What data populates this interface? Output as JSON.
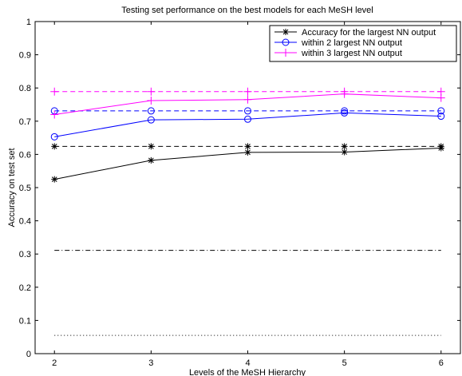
{
  "chart_data": {
    "type": "line",
    "title": "Testing set performance on the best models for each  MeSH level",
    "xlabel": "Levels of the MeSH Hierarchy",
    "ylabel": "Accuracy on test set",
    "x": [
      2,
      3,
      4,
      5,
      6
    ],
    "xlim": [
      1.8,
      6.2
    ],
    "ylim": [
      0,
      1
    ],
    "xticks": [
      "2",
      "3",
      "4",
      "5",
      "6"
    ],
    "yticks": [
      "0",
      "0.1",
      "0.2",
      "0.3",
      "0.4",
      "0.5",
      "0.6",
      "0.7",
      "0.8",
      "0.9",
      "1"
    ],
    "grid": false,
    "legend_position": "top-right",
    "series": [
      {
        "name": "Accuracy for the largest NN output",
        "color": "#000000",
        "marker": "star",
        "values": [
          0.525,
          0.582,
          0.606,
          0.607,
          0.619
        ]
      },
      {
        "name": "within 2 largest NN output",
        "color": "#0000ff",
        "marker": "circle",
        "values": [
          0.653,
          0.704,
          0.706,
          0.725,
          0.715
        ]
      },
      {
        "name": "within 3 largest NN output",
        "color": "#ff00ff",
        "marker": "plus",
        "values": [
          0.72,
          0.762,
          0.765,
          0.782,
          0.77
        ]
      }
    ],
    "reference_lines": [
      {
        "color": "#000000",
        "style": "dashed",
        "marker": "star",
        "values": [
          0.624,
          0.624,
          0.624,
          0.624,
          0.624
        ]
      },
      {
        "color": "#0000ff",
        "style": "dashed",
        "marker": "circle",
        "values": [
          0.731,
          0.731,
          0.731,
          0.731,
          0.731
        ]
      },
      {
        "color": "#ff00ff",
        "style": "dashed",
        "marker": "plus",
        "values": [
          0.789,
          0.789,
          0.789,
          0.789,
          0.789
        ]
      },
      {
        "color": "#000000",
        "style": "dashdot",
        "marker": "none",
        "values": [
          0.311,
          0.311,
          0.311,
          0.311,
          0.311
        ]
      },
      {
        "color": "#000000",
        "style": "dotted",
        "marker": "none",
        "values": [
          0.055,
          0.055,
          0.055,
          0.055,
          0.055
        ]
      }
    ]
  }
}
